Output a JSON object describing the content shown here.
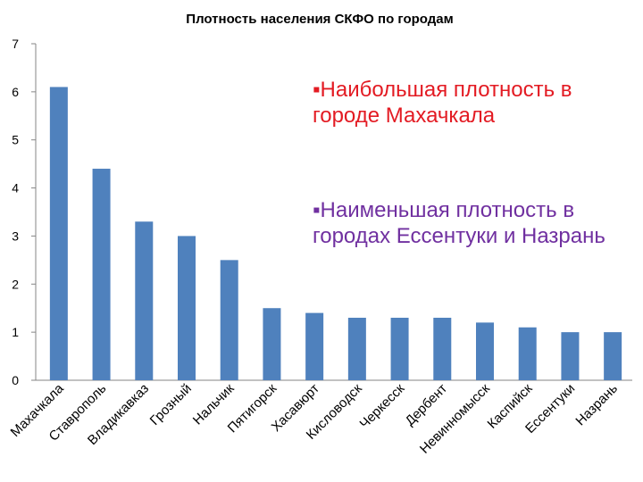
{
  "chart_data": {
    "type": "bar",
    "title": "Плотность населения СКФО по городам",
    "categories": [
      "Махачкала",
      "Ставрополь",
      "Владикавказ",
      "Грозный",
      "Нальчик",
      "Пятигорск",
      "Хасавюрт",
      "Кисловодск",
      "Черкесск",
      "Дербент",
      "Невинномысск",
      "Каспийск",
      "Ессентуки",
      "Назрань"
    ],
    "values": [
      6.1,
      4.4,
      3.3,
      3.0,
      2.5,
      1.5,
      1.4,
      1.3,
      1.3,
      1.3,
      1.2,
      1.1,
      1.0,
      1.0
    ],
    "ylim": [
      0,
      7
    ],
    "yticks": [
      "0",
      "1",
      "2",
      "3",
      "4",
      "5",
      "6",
      "7"
    ],
    "xlabel": "",
    "ylabel": "",
    "grid": false,
    "legend": "none",
    "bar_color": "#4f81bd"
  },
  "annotations": {
    "highest": {
      "text": "▪Наибольшая плотность в городе Махачкала",
      "color": "#e31b23"
    },
    "lowest": {
      "text": "▪Наименьшая плотность в городах Ессентуки  и Назрань",
      "color": "#7030a0"
    }
  }
}
